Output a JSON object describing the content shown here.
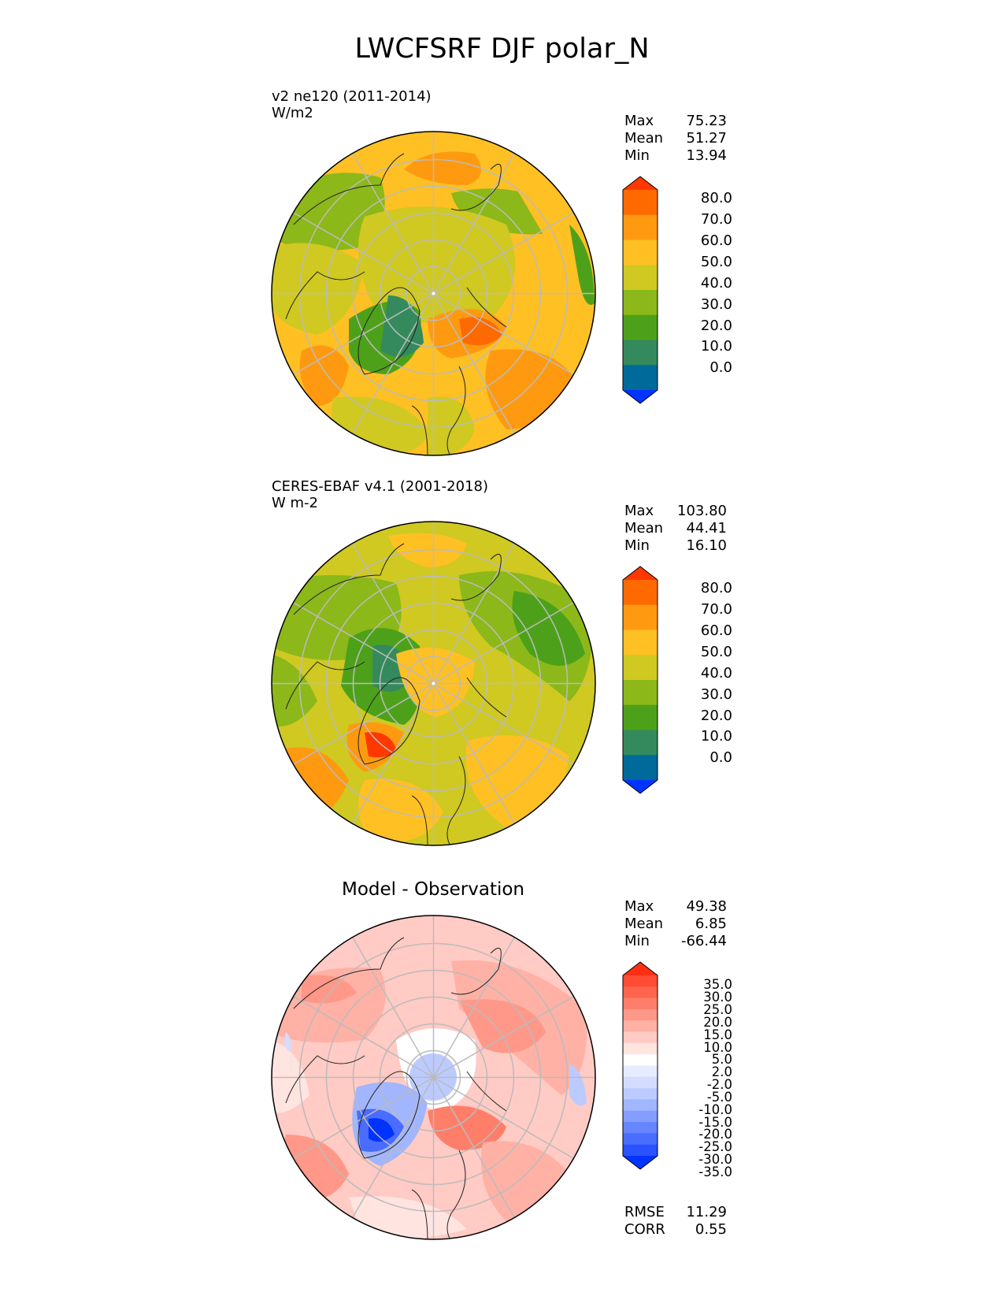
{
  "figure": {
    "title": "LWCFSRF DJF polar_N"
  },
  "panels": [
    {
      "line1": "v2 ne120 (2011-2014)",
      "line2": "W/m2",
      "stats": {
        "max_label": "Max",
        "max": "75.23",
        "mean_label": "Mean",
        "mean": "51.27",
        "min_label": "Min",
        "min": "13.94"
      },
      "colorbar": {
        "colors": [
          "#0033ff",
          "#006a9a",
          "#348a5c",
          "#4da11a",
          "#8cb81a",
          "#cfc922",
          "#ffc024",
          "#ff9a10",
          "#ff6a00",
          "#ff3800"
        ],
        "ticks": [
          "80.0",
          "70.0",
          "60.0",
          "50.0",
          "40.0",
          "30.0",
          "20.0",
          "10.0",
          "0.0"
        ]
      }
    },
    {
      "line1": "CERES-EBAF v4.1 (2001-2018)",
      "line2": "W m-2",
      "stats": {
        "max_label": "Max",
        "max": "103.80",
        "mean_label": "Mean",
        "mean": "44.41",
        "min_label": "Min",
        "min": "16.10"
      },
      "colorbar": {
        "colors": [
          "#0033ff",
          "#006a9a",
          "#348a5c",
          "#4da11a",
          "#8cb81a",
          "#cfc922",
          "#ffc024",
          "#ff9a10",
          "#ff6a00",
          "#ff3800"
        ],
        "ticks": [
          "80.0",
          "70.0",
          "60.0",
          "50.0",
          "40.0",
          "30.0",
          "20.0",
          "10.0",
          "0.0"
        ]
      }
    },
    {
      "title": "Model - Observation",
      "stats": {
        "max_label": "Max",
        "max": "49.38",
        "mean_label": "Mean",
        "mean": "6.85",
        "min_label": "Min",
        "min": "-66.44"
      },
      "colorbar": {
        "colors": [
          "#0033ff",
          "#2a52ff",
          "#4a6cff",
          "#6685ff",
          "#849dff",
          "#a2b5ff",
          "#bccbff",
          "#d4dcff",
          "#e8ecff",
          "#ffffff",
          "#ffe4e0",
          "#ffcbc4",
          "#ffb1a6",
          "#ff9888",
          "#ff7e6a",
          "#ff654e",
          "#ff4c32",
          "#ff2f14"
        ],
        "ticks": [
          "35.0",
          "30.0",
          "25.0",
          "20.0",
          "15.0",
          "10.0",
          "5.0",
          "2.0",
          "-2.0",
          "-5.0",
          "-10.0",
          "-15.0",
          "-20.0",
          "-25.0",
          "-30.0",
          "-35.0"
        ]
      },
      "metrics": {
        "rmse_label": "RMSE",
        "rmse": "11.29",
        "corr_label": "CORR",
        "corr": "0.55"
      }
    }
  ]
}
